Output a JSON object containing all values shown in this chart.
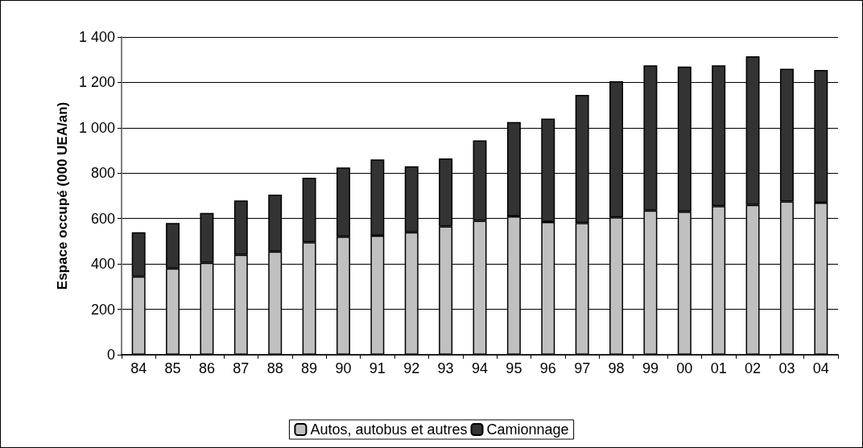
{
  "chart_data": {
    "type": "bar",
    "ylabel": "Espace occupé (000 UEA/an)",
    "categories": [
      "84",
      "85",
      "86",
      "87",
      "88",
      "89",
      "90",
      "91",
      "92",
      "93",
      "94",
      "95",
      "96",
      "97",
      "98",
      "99",
      "00",
      "01",
      "02",
      "03",
      "04"
    ],
    "series": [
      {
        "name": "Autos, autobus et autres",
        "color": "#c0c0c0",
        "values": [
          345,
          380,
          405,
          440,
          455,
          495,
          520,
          525,
          540,
          565,
          590,
          610,
          585,
          580,
          605,
          635,
          630,
          655,
          660,
          675,
          670
        ]
      },
      {
        "name": "Camionnage",
        "color": "#333333",
        "values": [
          195,
          200,
          220,
          240,
          250,
          285,
          305,
          335,
          290,
          300,
          355,
          415,
          455,
          565,
          600,
          640,
          640,
          620,
          655,
          585,
          585
        ]
      }
    ],
    "stacked": true,
    "ylim": [
      0,
      1400
    ],
    "yticks": [
      0,
      200,
      400,
      600,
      800,
      {
        "value": 1000,
        "label": "1 000"
      },
      {
        "value": 1200,
        "label": "1 200"
      },
      {
        "value": 1400,
        "label": "1 400"
      }
    ],
    "grid": "y",
    "legend": "bottom"
  }
}
